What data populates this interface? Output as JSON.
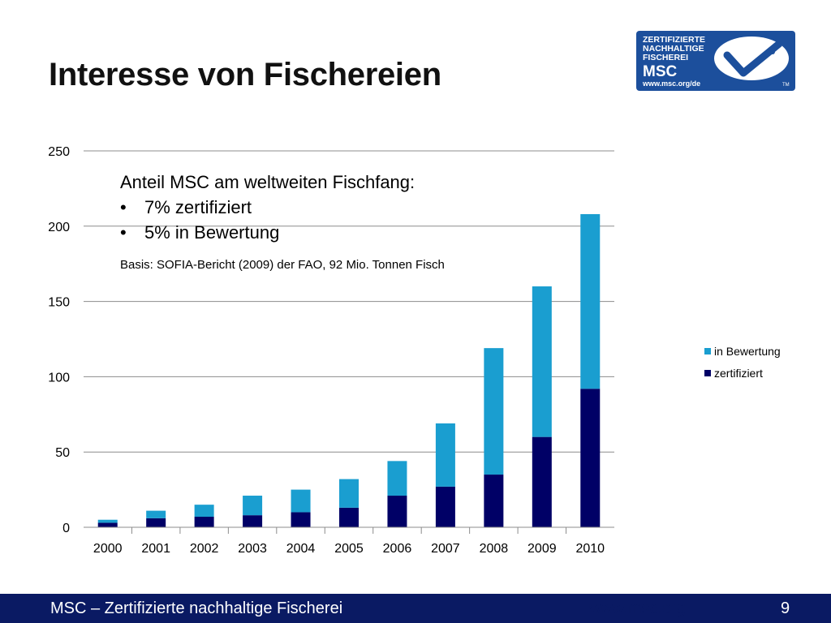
{
  "slide": {
    "title": "Interesse von Fischereien"
  },
  "logo": {
    "line1": "ZERTIFIZIERTE",
    "line2": "NACHHALTIGE",
    "line3": "FISCHEREI",
    "brand": "MSC",
    "url": "www.msc.org/de",
    "tm": "TM",
    "bg_color": "#1c4f9c"
  },
  "annotation": {
    "heading": "Anteil MSC am weltweiten Fischfang:",
    "bullets": [
      "7% zertifiziert",
      "5% in Bewertung"
    ],
    "bullet_symbol": "•",
    "note": "Basis: SOFIA-Bericht (2009) der FAO, 92 Mio. Tonnen Fisch"
  },
  "chart_data": {
    "type": "bar",
    "stacked": true,
    "categories": [
      "2000",
      "2001",
      "2002",
      "2003",
      "2004",
      "2005",
      "2006",
      "2007",
      "2008",
      "2009",
      "2010"
    ],
    "series": [
      {
        "name": "zertifiziert",
        "color": "#000066",
        "values": [
          3,
          6,
          7,
          8,
          10,
          13,
          21,
          27,
          35,
          60,
          92
        ]
      },
      {
        "name": "in Bewertung",
        "color": "#1a9ed0",
        "values": [
          2,
          5,
          8,
          13,
          15,
          19,
          23,
          42,
          84,
          100,
          116
        ]
      }
    ],
    "ylim": [
      0,
      250
    ],
    "yticks": [
      "0",
      "50",
      "100",
      "150",
      "200",
      "250"
    ],
    "grid": true,
    "legend": "right",
    "legend_order": [
      "in Bewertung",
      "zertifiziert"
    ]
  },
  "footer": {
    "left": "MSC – Zertifizierte nachhaltige Fischerei",
    "link": "www.msc.org",
    "page": "9",
    "bg_color": "#0a1a63"
  }
}
